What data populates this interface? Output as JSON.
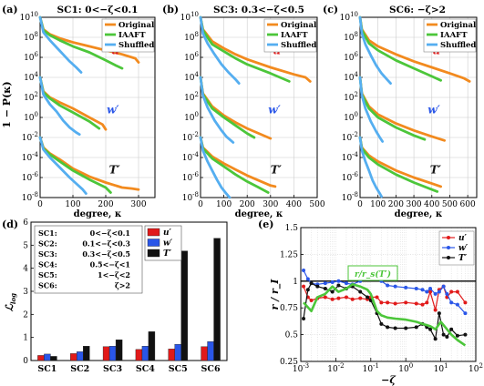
{
  "colors": {
    "original": "#f28a1e",
    "iaaft": "#4cc63a",
    "shuffled": "#55aef0",
    "u": "#e11a1a",
    "w": "#2a56e8",
    "t": "#111111",
    "ratio_label": "#4cc63a"
  },
  "top_panels": [
    {
      "tag": "(a)",
      "title": "SC1: 0<−ζ<0.1",
      "xlim": [
        0,
        350
      ],
      "xticks": [
        0,
        100,
        200,
        300
      ]
    },
    {
      "tag": "(b)",
      "title": "SC3: 0.3<−ζ<0.5",
      "xlim": [
        0,
        500
      ],
      "xticks": [
        0,
        100,
        200,
        300,
        400,
        500
      ]
    },
    {
      "tag": "(c)",
      "title": "SC6: −ζ>2",
      "xlim": [
        0,
        650
      ],
      "xticks": [
        0,
        100,
        200,
        300,
        400,
        500,
        600
      ]
    }
  ],
  "top_common": {
    "ylabel": "1 − P(κ)",
    "xlabel": "degree, κ",
    "yexp": [
      10,
      8,
      6,
      4,
      2,
      0,
      -2,
      -4,
      -6,
      -8
    ],
    "legend": [
      "Original",
      "IAAFT",
      "Shuffled"
    ],
    "labels": {
      "u": "u′",
      "w": "w′",
      "t": "T′"
    }
  },
  "chart_data": [
    {
      "type": "line",
      "panel": "(a)",
      "x_name": "degree κ",
      "y_name": "1−P(κ) (log10, vertically offset)",
      "series": [
        {
          "name": "Original",
          "var": "u′",
          "x": [
            0,
            10,
            30,
            60,
            100,
            150,
            200,
            250,
            290,
            300
          ],
          "y": [
            10,
            8.8,
            8.3,
            7.9,
            7.5,
            7.1,
            6.7,
            6.3,
            5.9,
            5.5
          ]
        },
        {
          "name": "IAAFT",
          "var": "u′",
          "x": [
            0,
            10,
            30,
            60,
            100,
            150,
            200,
            230,
            250
          ],
          "y": [
            10,
            8.7,
            8.2,
            7.7,
            7.1,
            6.5,
            5.7,
            5.2,
            4.9
          ]
        },
        {
          "name": "Shuffled",
          "var": "u′",
          "x": [
            0,
            10,
            30,
            50,
            70,
            90,
            110,
            125
          ],
          "y": [
            10,
            8.5,
            7.7,
            7.0,
            6.3,
            5.6,
            5.0,
            4.5
          ]
        },
        {
          "name": "Original",
          "var": "w′",
          "x": [
            0,
            10,
            30,
            60,
            100,
            150,
            190,
            200
          ],
          "y": [
            4,
            2.6,
            2.0,
            1.5,
            0.9,
            0.0,
            -0.7,
            -1.2
          ]
        },
        {
          "name": "IAAFT",
          "var": "w′",
          "x": [
            0,
            10,
            30,
            60,
            100,
            150,
            180
          ],
          "y": [
            4,
            2.5,
            1.9,
            1.2,
            0.5,
            -0.4,
            -1.1
          ]
        },
        {
          "name": "Shuffled",
          "var": "w′",
          "x": [
            0,
            10,
            30,
            50,
            70,
            90,
            110,
            120
          ],
          "y": [
            4,
            2.3,
            1.3,
            0.6,
            -0.3,
            -1.0,
            -1.5,
            -1.7
          ]
        },
        {
          "name": "Original",
          "var": "T′",
          "x": [
            0,
            10,
            30,
            60,
            100,
            150,
            200,
            250,
            280,
            300
          ],
          "y": [
            -2,
            -3.0,
            -3.6,
            -4.2,
            -5.1,
            -5.9,
            -6.5,
            -7.0,
            -7.1,
            -7.2
          ]
        },
        {
          "name": "IAAFT",
          "var": "T′",
          "x": [
            0,
            10,
            30,
            60,
            100,
            150,
            200,
            215
          ],
          "y": [
            -2,
            -3.1,
            -3.7,
            -4.4,
            -5.3,
            -6.2,
            -7.0,
            -7.5
          ]
        },
        {
          "name": "Shuffled",
          "var": "T′",
          "x": [
            0,
            10,
            30,
            60,
            90,
            110,
            130,
            140
          ],
          "y": [
            -2,
            -3.2,
            -4.0,
            -5.0,
            -6.0,
            -6.6,
            -7.2,
            -7.6
          ]
        }
      ]
    },
    {
      "type": "line",
      "panel": "(b)",
      "x_name": "degree κ",
      "y_name": "1−P(κ) (log10, vertically offset)",
      "series": [
        {
          "name": "Original",
          "var": "u′",
          "x": [
            0,
            10,
            50,
            100,
            150,
            200,
            300,
            400,
            450,
            470
          ],
          "y": [
            10,
            8.8,
            7.6,
            6.9,
            6.3,
            5.8,
            5.0,
            4.3,
            4.0,
            3.6
          ]
        },
        {
          "name": "IAAFT",
          "var": "u′",
          "x": [
            0,
            10,
            50,
            100,
            150,
            200,
            300,
            380
          ],
          "y": [
            10,
            8.7,
            7.3,
            6.6,
            5.9,
            5.3,
            4.4,
            3.6
          ]
        },
        {
          "name": "Shuffled",
          "var": "u′",
          "x": [
            0,
            10,
            30,
            60,
            90,
            120,
            150,
            165
          ],
          "y": [
            10,
            8.4,
            7.4,
            6.3,
            5.3,
            4.5,
            3.8,
            3.4
          ]
        },
        {
          "name": "Original",
          "var": "w′",
          "x": [
            0,
            10,
            50,
            100,
            150,
            200,
            250,
            300
          ],
          "y": [
            4,
            2.4,
            1.1,
            0.2,
            -0.5,
            -1.1,
            -1.6,
            -2.1
          ]
        },
        {
          "name": "IAAFT",
          "var": "w′",
          "x": [
            0,
            10,
            50,
            100,
            150,
            200,
            230
          ],
          "y": [
            4,
            2.3,
            0.9,
            0.0,
            -0.8,
            -1.6,
            -2.0
          ]
        },
        {
          "name": "Shuffled",
          "var": "w′",
          "x": [
            0,
            10,
            30,
            60,
            90,
            110,
            130,
            140
          ],
          "y": [
            4,
            2.2,
            1.0,
            -0.3,
            -1.3,
            -1.9,
            -2.3,
            -2.5
          ]
        },
        {
          "name": "Original",
          "var": "T′",
          "x": [
            0,
            10,
            50,
            100,
            150,
            200,
            250,
            300,
            320
          ],
          "y": [
            -2,
            -3.0,
            -3.9,
            -4.6,
            -5.2,
            -5.8,
            -6.3,
            -6.8,
            -6.9
          ]
        },
        {
          "name": "IAAFT",
          "var": "T′",
          "x": [
            0,
            10,
            50,
            100,
            150,
            200,
            250,
            290
          ],
          "y": [
            -2,
            -3.1,
            -4.1,
            -4.9,
            -5.7,
            -6.4,
            -7.0,
            -7.5
          ]
        },
        {
          "name": "Shuffled",
          "var": "T′",
          "x": [
            0,
            10,
            30,
            50,
            70,
            90,
            110,
            125
          ],
          "y": [
            -2,
            -3.3,
            -4.4,
            -5.3,
            -6.2,
            -7.0,
            -7.6,
            -8.0
          ]
        }
      ]
    },
    {
      "type": "line",
      "panel": "(c)",
      "x_name": "degree κ",
      "y_name": "1−P(κ) (log10, vertically offset)",
      "series": [
        {
          "name": "Original",
          "var": "u′",
          "x": [
            0,
            10,
            50,
            100,
            200,
            300,
            400,
            500,
            580,
            610
          ],
          "y": [
            10,
            8.8,
            7.7,
            7.1,
            6.3,
            5.6,
            5.0,
            4.4,
            3.9,
            3.6
          ]
        },
        {
          "name": "IAAFT",
          "var": "u′",
          "x": [
            0,
            10,
            50,
            100,
            200,
            300,
            400,
            450
          ],
          "y": [
            10,
            8.7,
            7.4,
            6.7,
            5.7,
            4.9,
            4.1,
            3.7
          ]
        },
        {
          "name": "Shuffled",
          "var": "u′",
          "x": [
            0,
            10,
            30,
            60,
            90,
            120,
            150,
            170
          ],
          "y": [
            10,
            8.4,
            7.3,
            6.2,
            5.2,
            4.4,
            3.8,
            3.4
          ]
        },
        {
          "name": "Original",
          "var": "w′",
          "x": [
            0,
            10,
            50,
            100,
            200,
            300,
            400,
            470
          ],
          "y": [
            4,
            2.4,
            1.1,
            0.3,
            -0.6,
            -1.3,
            -1.9,
            -2.3
          ]
        },
        {
          "name": "IAAFT",
          "var": "w′",
          "x": [
            0,
            10,
            50,
            100,
            200,
            300,
            360
          ],
          "y": [
            4,
            2.3,
            0.9,
            0.0,
            -1.0,
            -1.8,
            -2.2
          ]
        },
        {
          "name": "Shuffled",
          "var": "w′",
          "x": [
            0,
            10,
            30,
            60,
            90,
            110,
            125
          ],
          "y": [
            4,
            2.2,
            0.9,
            -0.4,
            -1.4,
            -2.0,
            -2.4
          ]
        },
        {
          "name": "Original",
          "var": "T′",
          "x": [
            0,
            10,
            50,
            100,
            200,
            300,
            400,
            450
          ],
          "y": [
            -2,
            -3.0,
            -3.8,
            -4.4,
            -5.3,
            -6.0,
            -6.6,
            -6.9
          ]
        },
        {
          "name": "IAAFT",
          "var": "T′",
          "x": [
            0,
            10,
            50,
            100,
            200,
            300,
            400,
            430
          ],
          "y": [
            -2,
            -3.1,
            -4.0,
            -4.7,
            -5.7,
            -6.5,
            -7.2,
            -7.4
          ]
        },
        {
          "name": "Shuffled",
          "var": "T′",
          "x": [
            0,
            10,
            30,
            50,
            70,
            90,
            110,
            120
          ],
          "y": [
            -2,
            -3.3,
            -4.4,
            -5.3,
            -6.3,
            -7.0,
            -7.6,
            -7.9
          ]
        }
      ]
    },
    {
      "type": "bar",
      "panel": "(d)",
      "ylabel": "ℒ",
      "ylabel_sub": "log",
      "ylim": [
        0,
        6
      ],
      "yticks": [
        0,
        1,
        2,
        3,
        4,
        5,
        6
      ],
      "categories": [
        "SC1",
        "SC2",
        "SC3",
        "SC4",
        "SC5",
        "SC6"
      ],
      "series": [
        {
          "name": "u′",
          "values": [
            0.22,
            0.3,
            0.6,
            0.48,
            0.5,
            0.6
          ]
        },
        {
          "name": "w′",
          "values": [
            0.28,
            0.38,
            0.62,
            0.62,
            0.7,
            0.82
          ]
        },
        {
          "name": "T′",
          "values": [
            0.18,
            0.62,
            0.9,
            1.25,
            4.75,
            5.3
          ]
        }
      ],
      "ranges": [
        {
          "label": "SC1:",
          "range": "0<−ζ<0.1"
        },
        {
          "label": "SC2:",
          "range": "0.1<−ζ<0.3"
        },
        {
          "label": "SC3:",
          "range": "0.3<−ζ<0.5"
        },
        {
          "label": "SC4:",
          "range": "0.5<−ζ<1"
        },
        {
          "label": "SC5:",
          "range": "1<−ζ<2"
        },
        {
          "label": "SC6:",
          "range": "ζ>2"
        }
      ]
    },
    {
      "type": "line",
      "panel": "(e)",
      "xlabel": "−ζ",
      "ylabel": "r / r_I",
      "xscale": "log",
      "xlim": [
        0.001,
        100
      ],
      "ylim": [
        0.25,
        1.5
      ],
      "yticks": [
        0.25,
        0.5,
        0.75,
        1,
        1.25,
        1.5
      ],
      "xticks": [
        "10^-3",
        "10^-2",
        "10^-1",
        "10^0",
        "10^1",
        "10^2"
      ],
      "annotation": "r/r_s(T′)",
      "series": [
        {
          "name": "u′",
          "x": [
            0.0012,
            0.0016,
            0.002,
            0.003,
            0.005,
            0.008,
            0.012,
            0.02,
            0.03,
            0.05,
            0.08,
            0.1,
            0.15,
            0.2,
            0.3,
            0.5,
            1,
            2,
            3,
            4,
            5,
            7,
            9,
            12,
            15,
            20,
            30,
            50
          ],
          "y": [
            0.95,
            0.85,
            0.82,
            0.84,
            0.85,
            0.83,
            0.84,
            0.85,
            0.83,
            0.84,
            0.83,
            0.85,
            0.85,
            0.8,
            0.8,
            0.79,
            0.8,
            0.79,
            0.78,
            0.8,
            0.9,
            0.73,
            0.92,
            0.95,
            0.85,
            0.9,
            0.9,
            0.8
          ]
        },
        {
          "name": "w′",
          "x": [
            0.0012,
            0.0016,
            0.002,
            0.003,
            0.005,
            0.008,
            0.012,
            0.02,
            0.03,
            0.05,
            0.08,
            0.1,
            0.15,
            0.2,
            0.3,
            0.5,
            1,
            2,
            3,
            4,
            5,
            7,
            9,
            12,
            15,
            20,
            30,
            50
          ],
          "y": [
            1.1,
            1.02,
            0.98,
            0.97,
            0.98,
            0.99,
            1.0,
            0.98,
            0.97,
            1.0,
            1.05,
            1.07,
            1.05,
            1.0,
            0.96,
            0.95,
            0.94,
            0.93,
            0.92,
            0.9,
            0.93,
            0.88,
            0.9,
            0.95,
            0.88,
            0.8,
            0.78,
            0.7
          ]
        },
        {
          "name": "T′",
          "x": [
            0.0012,
            0.0016,
            0.002,
            0.003,
            0.005,
            0.008,
            0.012,
            0.02,
            0.03,
            0.05,
            0.08,
            0.1,
            0.15,
            0.2,
            0.3,
            0.5,
            1,
            2,
            3,
            4,
            5,
            7,
            9,
            12,
            15,
            20,
            30,
            50
          ],
          "y": [
            0.65,
            0.92,
            0.98,
            0.95,
            0.93,
            0.9,
            0.96,
            0.93,
            0.95,
            0.9,
            0.85,
            0.82,
            0.7,
            0.6,
            0.57,
            0.56,
            0.56,
            0.57,
            0.6,
            0.57,
            0.55,
            0.46,
            0.7,
            0.5,
            0.48,
            0.55,
            0.49,
            0.5
          ]
        },
        {
          "name": "r/r_s(T′)",
          "x": [
            0.0012,
            0.002,
            0.003,
            0.005,
            0.008,
            0.012,
            0.02,
            0.03,
            0.05,
            0.08,
            0.1,
            0.15,
            0.2,
            0.3,
            0.5,
            1,
            2,
            3,
            5,
            7,
            10,
            15,
            20,
            30,
            50
          ],
          "y": [
            0.8,
            0.72,
            0.85,
            0.88,
            0.95,
            0.9,
            0.93,
            0.97,
            0.95,
            0.92,
            0.88,
            0.72,
            0.68,
            0.66,
            0.65,
            0.64,
            0.62,
            0.6,
            0.58,
            0.55,
            0.62,
            0.55,
            0.5,
            0.45,
            0.4
          ]
        }
      ]
    }
  ]
}
